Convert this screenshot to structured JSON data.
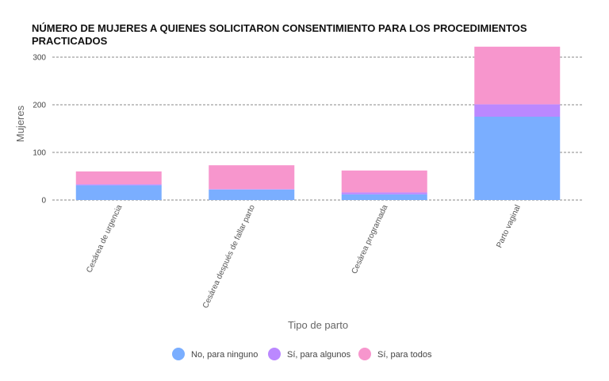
{
  "chart_data": {
    "type": "bar",
    "stacked": true,
    "title": "NÚMERO DE MUJERES A QUIENES SOLICITARON CONSENTIMIENTO PARA LOS PROCEDIMIENTOS PRACTICADOS",
    "xlabel": "Tipo de parto",
    "ylabel": "Mujeres",
    "ylim": [
      0,
      320
    ],
    "yticks": [
      "0",
      "100",
      "200",
      "300"
    ],
    "categories": [
      "Cesárea de urgencia",
      "Cesárea después de fallar parto",
      "Cesárea programada",
      "Parto vaginal"
    ],
    "series": [
      {
        "name": "No, para ninguno",
        "color": "#7aaeff",
        "values": [
          31,
          22,
          12,
          175
        ]
      },
      {
        "name": "Sí, para algunos",
        "color": "#bb88ff",
        "values": [
          2,
          1,
          4,
          26
        ]
      },
      {
        "name": "Sí, para todos",
        "color": "#f796cd",
        "values": [
          27,
          50,
          46,
          121
        ]
      }
    ],
    "grid": true,
    "legend_position": "bottom-center"
  }
}
